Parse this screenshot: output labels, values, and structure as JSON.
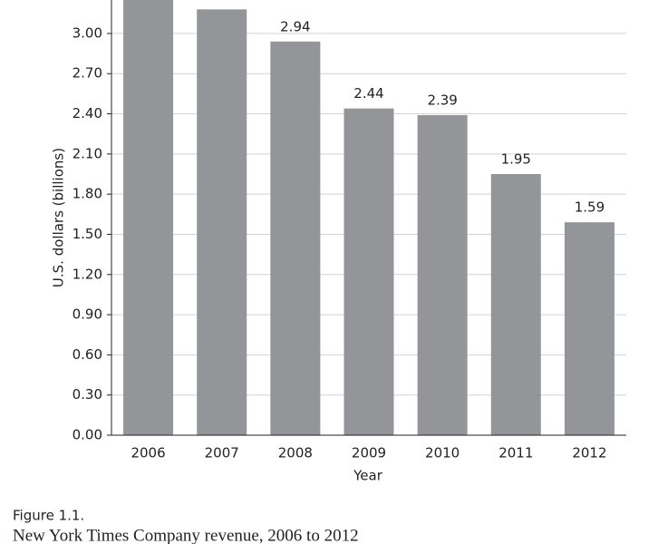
{
  "chart_data": {
    "type": "bar",
    "y_label": "U.S. dollars (billions)",
    "x_label": "Year",
    "categories": [
      "2006",
      "2007",
      "2008",
      "2009",
      "2010",
      "2011",
      "2012"
    ],
    "values": [
      3.29,
      3.18,
      2.94,
      2.44,
      2.39,
      1.95,
      1.59
    ],
    "color": "#939598",
    "ylim": [
      0,
      3.25
    ],
    "yticks": [
      {
        "value": 0,
        "label": "0.00"
      },
      {
        "value": 0.3,
        "label": "0.30"
      },
      {
        "value": 0.6,
        "label": "0.60"
      },
      {
        "value": 0.9,
        "label": "0.90"
      },
      {
        "value": 1.2,
        "label": "1.20"
      },
      {
        "value": 1.5,
        "label": "1.50"
      },
      {
        "value": 1.8,
        "label": "1.80"
      },
      {
        "value": 2.1,
        "label": "2.10"
      },
      {
        "value": 2.4,
        "label": "2.40"
      },
      {
        "value": 2.7,
        "label": "2.70"
      },
      {
        "value": 3,
        "label": "3.00"
      }
    ],
    "grid": true
  },
  "caption": {
    "label": "Figure 1.1.",
    "text": "New York Times Company revenue, 2006 to 2012"
  }
}
